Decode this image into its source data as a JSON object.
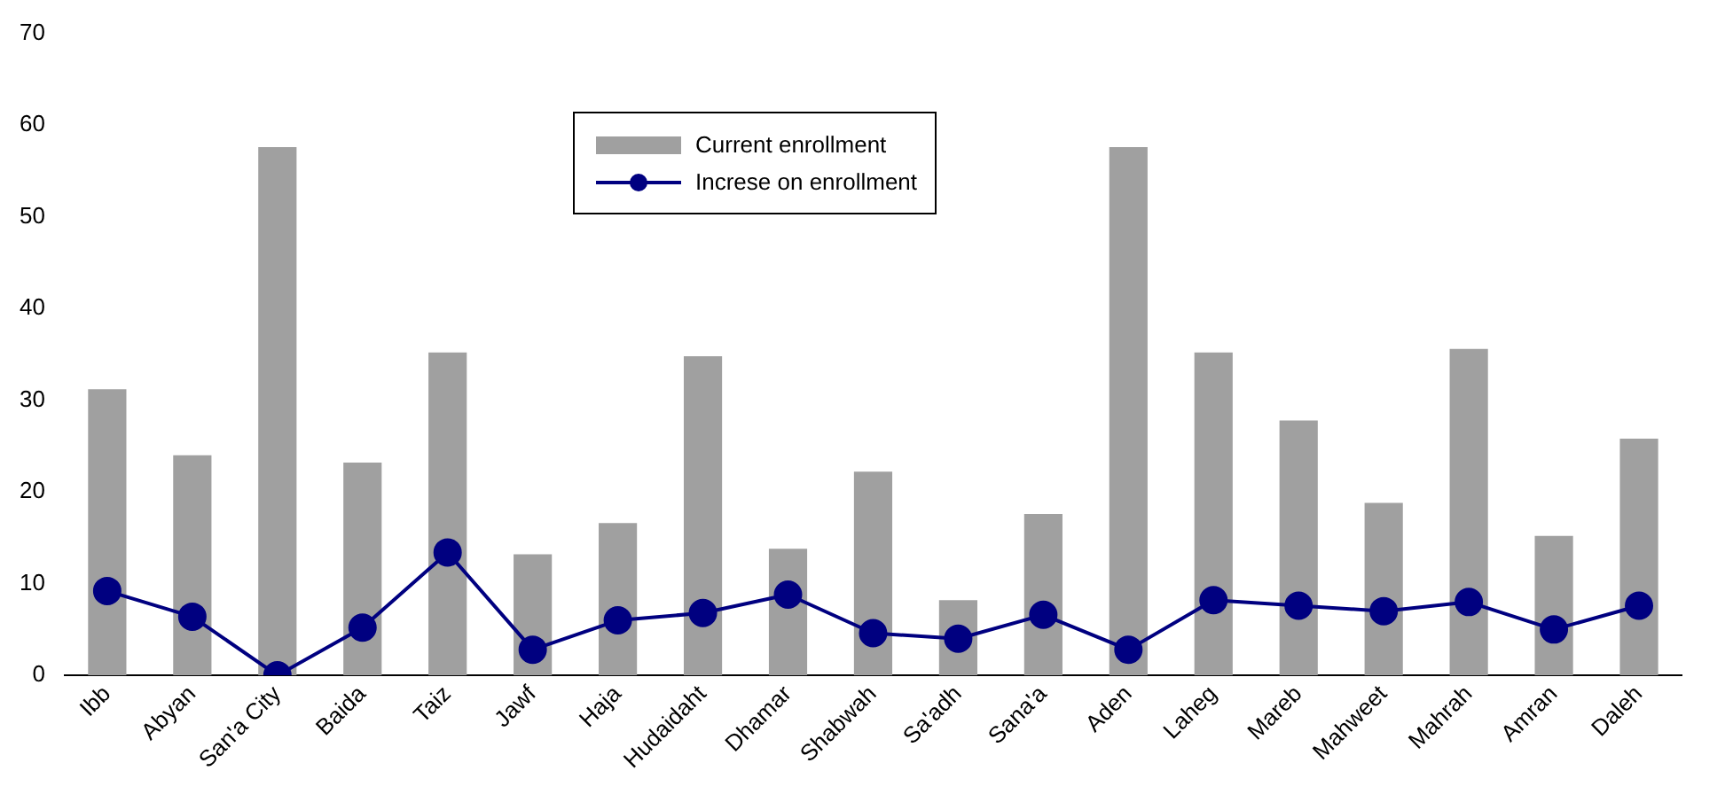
{
  "chart_data": {
    "type": "bar",
    "categories": [
      "Ibb",
      "Abyan",
      "San'a City",
      "Baida",
      "Taiz",
      "Jawf",
      "Haja",
      "Hudaidaht",
      "Dhamar",
      "Shabwah",
      "Sa'adh",
      "Sana'a",
      "Aden",
      "Laheg",
      "Mareb",
      "Mahweet",
      "Mahrah",
      "Amran",
      "Daleh"
    ],
    "series": [
      {
        "name": "Current enrollment",
        "color": "#a0a0a0",
        "values": [
          31.2,
          24,
          57.6,
          23.2,
          35.2,
          13.2,
          16.6,
          34.8,
          13.8,
          22.2,
          8.2,
          17.6,
          57.6,
          35.2,
          27.8,
          18.8,
          35.6,
          15.2,
          25.8
        ]
      },
      {
        "name": "Increse on enrollment",
        "type": "line",
        "color": "#000080",
        "values": [
          9.2,
          6.4,
          0,
          5.2,
          13.4,
          2.8,
          6,
          6.8,
          8.8,
          4.6,
          4,
          6.6,
          2.8,
          8.2,
          7.6,
          7,
          8,
          5,
          7.6
        ]
      }
    ],
    "ylim": [
      0,
      70
    ],
    "yticks": [
      0,
      10,
      20,
      30,
      40,
      50,
      60,
      70
    ],
    "grid": false,
    "legend": "top",
    "marker": "circle",
    "line_style": "solid"
  }
}
